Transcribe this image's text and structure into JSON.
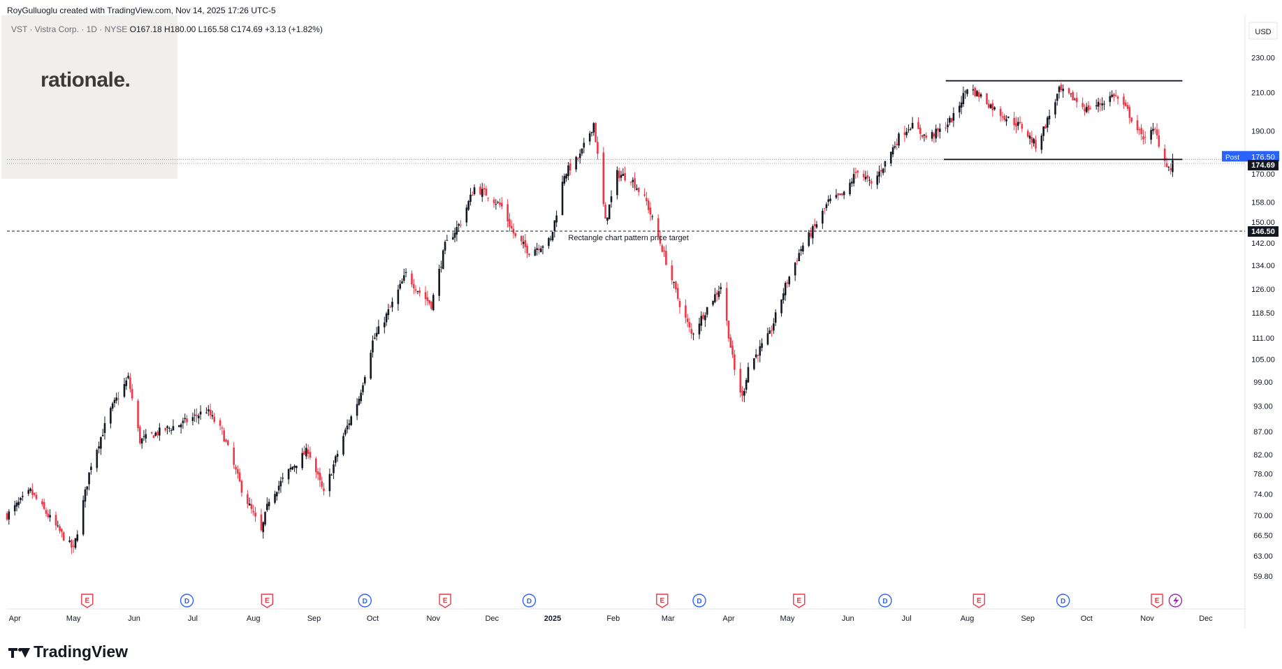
{
  "header": {
    "credit": "RoyGulluoglu created with TradingView.com, Nov 14, 2025 17:26 UTC-5",
    "symbol": "VST · Vistra Corp. · 1D · NYSE",
    "ohlc": "O167.18  H180.00  L165.58  C174.69  +3.13 (+1.82%)"
  },
  "logo": {
    "text": "rationale."
  },
  "brand": {
    "name": "TradingView"
  },
  "colors": {
    "up": "#089981",
    "down": "#f23645",
    "body_up": "#131722",
    "dividend": "#2962ff",
    "earnings": "#f23645",
    "grid": "#e0e3eb"
  },
  "chart_data": {
    "type": "candlestick",
    "currency": "USD",
    "y_scale": "log",
    "ylim": [
      55.5,
      252
    ],
    "y_ticks": [
      "230.00",
      "210.00",
      "190.00",
      "170.00",
      "158.00",
      "150.00",
      "142.00",
      "134.00",
      "126.00",
      "118.50",
      "111.00",
      "105.00",
      "99.00",
      "93.00",
      "87.00",
      "82.00",
      "78.00",
      "74.00",
      "70.00",
      "66.50",
      "63.00",
      "59.80"
    ],
    "x_ticks": [
      {
        "label": "Apr",
        "date": "2024-04-01"
      },
      {
        "label": "May",
        "date": "2024-05-01"
      },
      {
        "label": "Jun",
        "date": "2024-06-01"
      },
      {
        "label": "Jul",
        "date": "2024-07-01"
      },
      {
        "label": "Aug",
        "date": "2024-08-01"
      },
      {
        "label": "Sep",
        "date": "2024-09-01"
      },
      {
        "label": "Oct",
        "date": "2024-10-01"
      },
      {
        "label": "Nov",
        "date": "2024-11-01"
      },
      {
        "label": "Dec",
        "date": "2024-12-01"
      },
      {
        "label": "2025",
        "date": "2025-01-01"
      },
      {
        "label": "Feb",
        "date": "2025-02-01"
      },
      {
        "label": "Mar",
        "date": "2025-03-01"
      },
      {
        "label": "Apr",
        "date": "2025-04-01"
      },
      {
        "label": "May",
        "date": "2025-05-01"
      },
      {
        "label": "Jun",
        "date": "2025-06-01"
      },
      {
        "label": "Jul",
        "date": "2025-07-01"
      },
      {
        "label": "Aug",
        "date": "2025-08-01"
      },
      {
        "label": "Sep",
        "date": "2025-09-01"
      },
      {
        "label": "Oct",
        "date": "2025-10-01"
      },
      {
        "label": "Nov",
        "date": "2025-11-01"
      },
      {
        "label": "Dec",
        "date": "2025-12-01"
      }
    ],
    "x_range": [
      "2024-03-28",
      "2025-12-21"
    ],
    "price_labels": [
      {
        "tag": "Post",
        "value": "176.50",
        "y": 176.5,
        "style": "post"
      },
      {
        "value": "174.69",
        "y": 174.69,
        "style": "last"
      },
      {
        "value": "146.50",
        "y": 146.5,
        "style": "target"
      }
    ],
    "lines": [
      {
        "name": "rectangle-top",
        "y": 216.5,
        "from": "2025-07-21",
        "to": "2025-11-19"
      },
      {
        "name": "rectangle-bottom",
        "y": 176.5,
        "from": "2025-07-20",
        "to": "2025-11-19"
      }
    ],
    "target_line": {
      "y": 146.5,
      "label": "Rectangle chart pattern price target"
    },
    "events": [
      {
        "type": "E",
        "date": "2024-05-08"
      },
      {
        "type": "D",
        "date": "2024-06-28"
      },
      {
        "type": "E",
        "date": "2024-08-08"
      },
      {
        "type": "D",
        "date": "2024-09-27"
      },
      {
        "type": "E",
        "date": "2024-11-07"
      },
      {
        "type": "D",
        "date": "2024-12-20"
      },
      {
        "type": "E",
        "date": "2025-02-26"
      },
      {
        "type": "D",
        "date": "2025-03-17"
      },
      {
        "type": "E",
        "date": "2025-05-07"
      },
      {
        "type": "D",
        "date": "2025-06-20"
      },
      {
        "type": "E",
        "date": "2025-08-07"
      },
      {
        "type": "D",
        "date": "2025-09-19"
      },
      {
        "type": "E",
        "date": "2025-11-06"
      },
      {
        "type": "S",
        "date": "2025-11-14"
      }
    ],
    "series": [
      {
        "name": "close",
        "points": [
          [
            "2024-03-28",
            70
          ],
          [
            "2024-04-09",
            74.5
          ],
          [
            "2024-04-22",
            68
          ],
          [
            "2024-05-01",
            64
          ],
          [
            "2024-05-10",
            80
          ],
          [
            "2024-05-20",
            92
          ],
          [
            "2024-05-29",
            100
          ],
          [
            "2024-06-04",
            85
          ],
          [
            "2024-06-14",
            87
          ],
          [
            "2024-06-26",
            89
          ],
          [
            "2024-07-08",
            92
          ],
          [
            "2024-07-16",
            87
          ],
          [
            "2024-07-26",
            75
          ],
          [
            "2024-08-05",
            67
          ],
          [
            "2024-08-09",
            73
          ],
          [
            "2024-08-20",
            79
          ],
          [
            "2024-08-29",
            83
          ],
          [
            "2024-09-06",
            74
          ],
          [
            "2024-09-16",
            86
          ],
          [
            "2024-09-24",
            95
          ],
          [
            "2024-10-01",
            110
          ],
          [
            "2024-10-10",
            120
          ],
          [
            "2024-10-18",
            131
          ],
          [
            "2024-10-25",
            125
          ],
          [
            "2024-10-31",
            121
          ],
          [
            "2024-11-07",
            141
          ],
          [
            "2024-11-15",
            150
          ],
          [
            "2024-11-22",
            164
          ],
          [
            "2024-11-29",
            161
          ],
          [
            "2024-12-06",
            156
          ],
          [
            "2024-12-13",
            144
          ],
          [
            "2024-12-20",
            139
          ],
          [
            "2024-12-31",
            143
          ],
          [
            "2025-01-07",
            170
          ],
          [
            "2025-01-15",
            178
          ],
          [
            "2025-01-22",
            194
          ],
          [
            "2025-01-28",
            150
          ],
          [
            "2025-02-03",
            170
          ],
          [
            "2025-02-10",
            168
          ],
          [
            "2025-02-18",
            158
          ],
          [
            "2025-02-26",
            140
          ],
          [
            "2025-03-06",
            123
          ],
          [
            "2025-03-13",
            112
          ],
          [
            "2025-03-21",
            120
          ],
          [
            "2025-03-28",
            127
          ],
          [
            "2025-04-04",
            102
          ],
          [
            "2025-04-08",
            95
          ],
          [
            "2025-04-11",
            103
          ],
          [
            "2025-04-22",
            112
          ],
          [
            "2025-04-30",
            127
          ],
          [
            "2025-05-08",
            140
          ],
          [
            "2025-05-15",
            148
          ],
          [
            "2025-05-22",
            158
          ],
          [
            "2025-05-30",
            161
          ],
          [
            "2025-06-06",
            172
          ],
          [
            "2025-06-13",
            165
          ],
          [
            "2025-06-20",
            175
          ],
          [
            "2025-06-27",
            187
          ],
          [
            "2025-07-03",
            193
          ],
          [
            "2025-07-11",
            187
          ],
          [
            "2025-07-18",
            190
          ],
          [
            "2025-07-25",
            197
          ],
          [
            "2025-08-01",
            213
          ],
          [
            "2025-08-08",
            208
          ],
          [
            "2025-08-15",
            201
          ],
          [
            "2025-08-22",
            196
          ],
          [
            "2025-08-29",
            192
          ],
          [
            "2025-09-05",
            183
          ],
          [
            "2025-09-10",
            193
          ],
          [
            "2025-09-17",
            211
          ],
          [
            "2025-09-24",
            207
          ],
          [
            "2025-10-01",
            201
          ],
          [
            "2025-10-08",
            204
          ],
          [
            "2025-10-15",
            209
          ],
          [
            "2025-10-22",
            200
          ],
          [
            "2025-10-29",
            187
          ],
          [
            "2025-11-05",
            190
          ],
          [
            "2025-11-10",
            176
          ],
          [
            "2025-11-13",
            171.5
          ],
          [
            "2025-11-14",
            174.69
          ]
        ]
      }
    ]
  }
}
